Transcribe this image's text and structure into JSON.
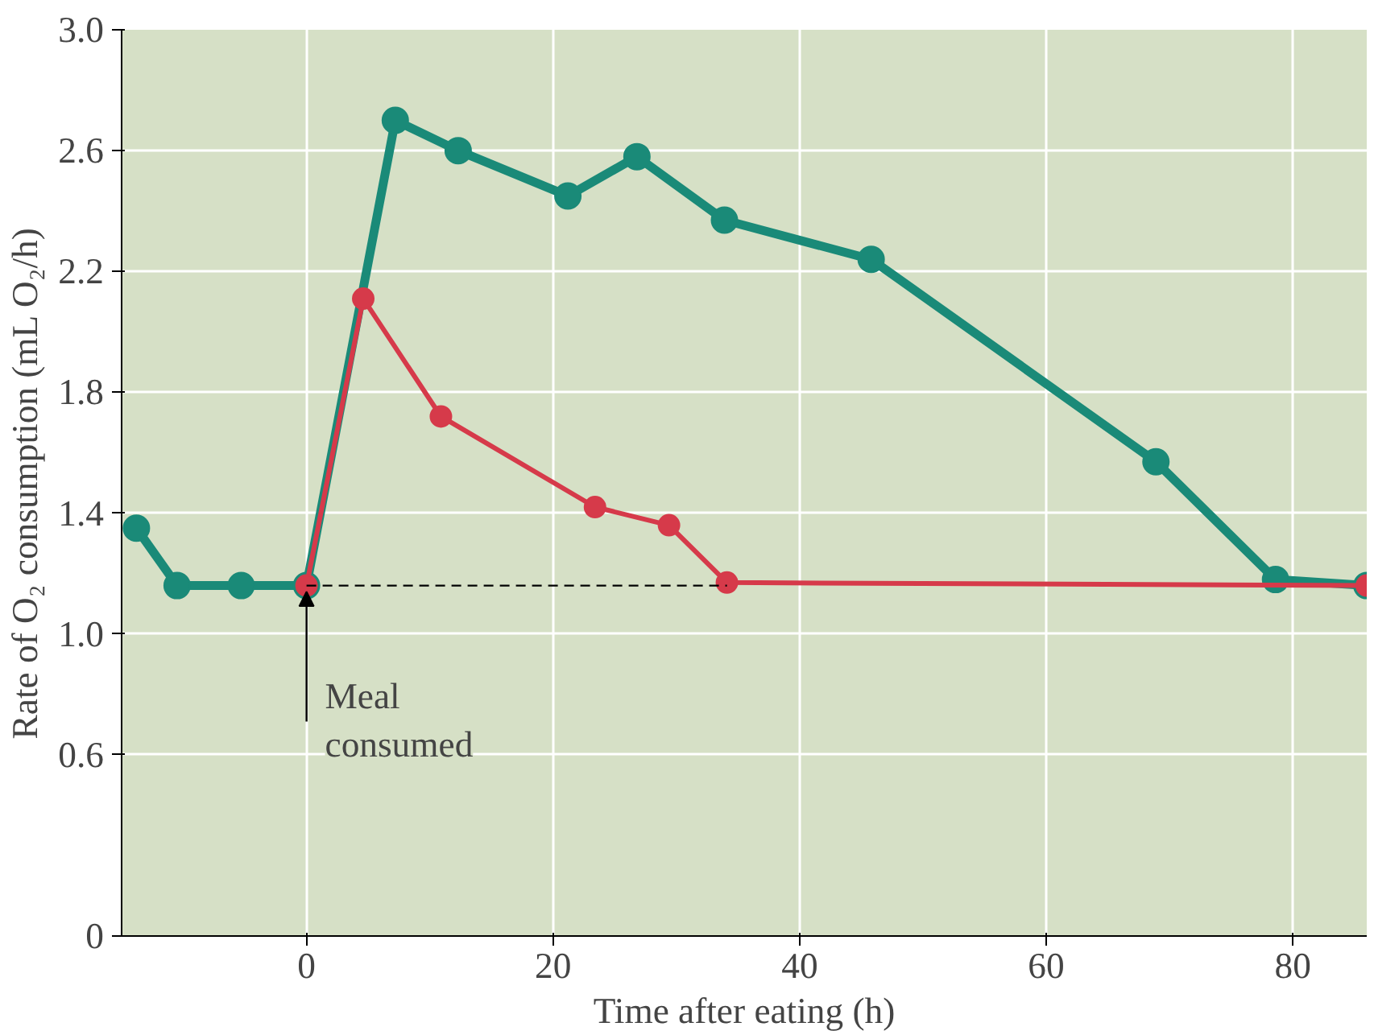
{
  "chart_data": {
    "type": "line",
    "xlabel": "Time after eating (h)",
    "ylabel": "Rate of O₂ consumption (mL O₂/h)",
    "xlim": [
      -15,
      86
    ],
    "ylim": [
      0,
      3.0
    ],
    "xticks": [
      0,
      20,
      40,
      60,
      80
    ],
    "yticks": [
      0,
      0.6,
      {
        "value": 1,
        "label": "1.0"
      },
      1.4,
      1.8,
      2.2,
      2.6,
      {
        "value": 3,
        "label": "3.0"
      }
    ],
    "grid": true,
    "marker": "circle",
    "series": [
      {
        "color": "#1a8a78",
        "x": [
          -13.8,
          -10.5,
          -5.3,
          0,
          7.2,
          12.3,
          21.2,
          26.8,
          33.9,
          45.8,
          68.9,
          78.6,
          86
        ],
        "values": [
          1.35,
          1.16,
          1.16,
          1.16,
          2.7,
          2.6,
          2.45,
          2.58,
          2.37,
          2.24,
          1.57,
          1.18,
          1.16
        ]
      },
      {
        "color": "#d63a4a",
        "x": [
          0,
          4.6,
          10.9,
          23.4,
          29.4,
          34.1,
          86
        ],
        "values": [
          1.16,
          2.11,
          1.72,
          1.42,
          1.36,
          1.17,
          1.16
        ]
      },
      {
        "color": "#000000",
        "x": [
          0,
          34.1
        ],
        "values": [
          1.16,
          1.16
        ],
        "marker": "none",
        "line_style": "dashed"
      }
    ],
    "annotations": [
      {
        "text": "Meal\nconsumed",
        "x": 0,
        "y": 1.16
      }
    ]
  }
}
